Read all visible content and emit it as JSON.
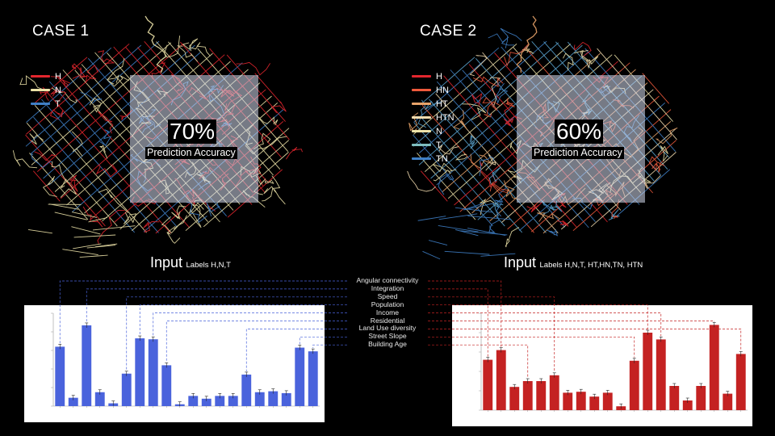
{
  "colors": {
    "H": "#e3262e",
    "HN": "#ef5a3c",
    "HT": "#e8a36a",
    "HTN": "#f2dcb0",
    "N": "#ece2a8",
    "T": "#3f7fc6",
    "TN": "#5aa3cf",
    "chart1_bar": "#4a63dc",
    "chart2_bar": "#c42222",
    "connector1": "#4a63dc",
    "connector2": "#c42222"
  },
  "case1": {
    "title": "CASE 1",
    "legend": [
      {
        "label": "H",
        "color": "#e3262e"
      },
      {
        "label": "N",
        "color": "#ece2a8"
      },
      {
        "label": "T",
        "color": "#3f7fc6"
      }
    ],
    "accuracy_value": "70%",
    "accuracy_label": "Prediction Accuracy",
    "input_word": "Input",
    "input_labels": "Labels H,N,T"
  },
  "case2": {
    "title": "CASE 2",
    "legend": [
      {
        "label": "H",
        "color": "#e3262e"
      },
      {
        "label": "HN",
        "color": "#ef5a3c"
      },
      {
        "label": "HT",
        "color": "#e8a36a"
      },
      {
        "label": "HTN",
        "color": "#f2dcb0"
      },
      {
        "label": "N",
        "color": "#ece2a8"
      },
      {
        "label": "T",
        "color": "#7fbfc0"
      },
      {
        "label": "TN",
        "color": "#3f7fc6"
      }
    ],
    "accuracy_value": "60%",
    "accuracy_label": "Prediction Accuracy",
    "input_word": "Input",
    "input_labels": "Labels H,N,T, HT,HN,TN, HTN"
  },
  "features": [
    "Angular connectivity",
    "Integration",
    "Speed",
    "Population",
    "Income",
    "Residential",
    "Land Use diversity",
    "Street Slope",
    "Building Age"
  ],
  "chart_data": [
    {
      "type": "bar",
      "values": [
        0.64,
        0.09,
        0.87,
        0.15,
        0.03,
        0.35,
        0.73,
        0.72,
        0.44,
        0.02,
        0.11,
        0.08,
        0.11,
        0.11,
        0.34,
        0.15,
        0.16,
        0.14,
        0.63,
        0.59
      ],
      "ylim": [
        0,
        1
      ]
    },
    {
      "type": "bar",
      "values": [
        0.52,
        0.62,
        0.24,
        0.3,
        0.3,
        0.36,
        0.18,
        0.19,
        0.14,
        0.18,
        0.04,
        0.51,
        0.8,
        0.73,
        0.25,
        0.1,
        0.25,
        0.88,
        0.17,
        0.58
      ],
      "ylim": [
        0,
        1
      ]
    }
  ]
}
